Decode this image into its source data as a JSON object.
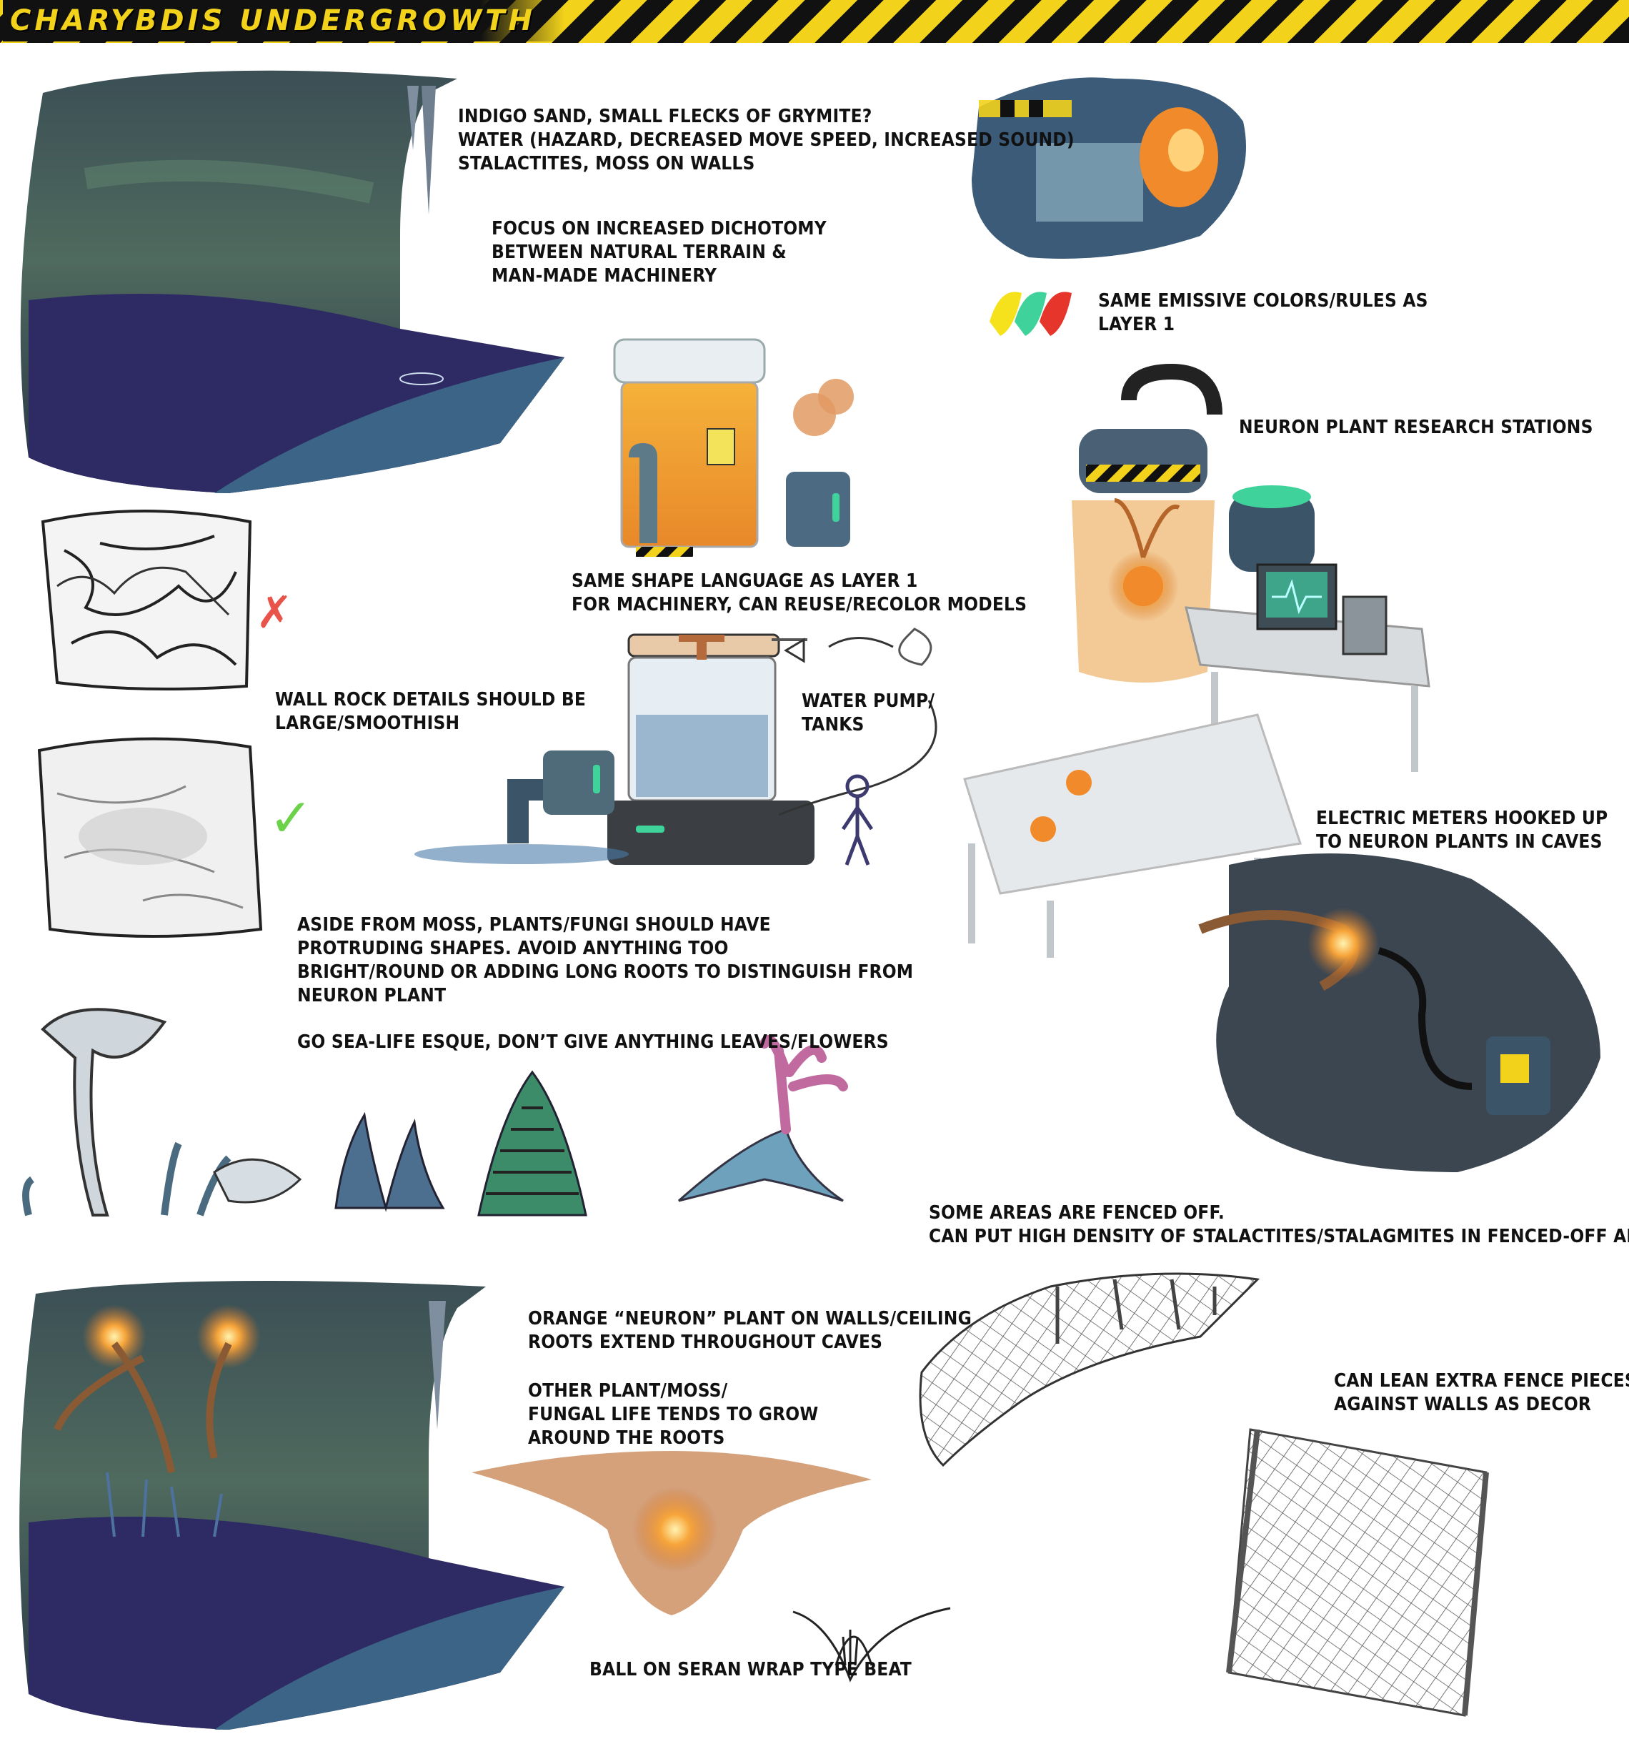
{
  "header": {
    "title": "CHARYBDIS UNDERGROWTH"
  },
  "notes": {
    "cave_materials": "INDIGO SAND, SMALL FLECKS OF GRYMITE?\nWATER (HAZARD, DECREASED MOVE SPEED, INCREASED SOUND)\nSTALACTITES, MOSS ON WALLS",
    "focus": "FOCUS ON INCREASED DICHOTOMY\nBETWEEN NATURAL TERRAIN &\nMAN-MADE MACHINERY",
    "emissive": "SAME EMISSIVE COLORS/RULES AS\nLAYER 1",
    "research_stations": "NEURON PLANT RESEARCH STATIONS",
    "shape_language": "SAME SHAPE LANGUAGE AS LAYER 1\nFOR MACHINERY, CAN REUSE/RECOLOR MODELS",
    "wall_rock": "WALL ROCK DETAILS SHOULD BE\nLARGE/SMOOTHISH",
    "water_pump": "WATER PUMP/\nTANKS",
    "electric_meters": "ELECTRIC METERS HOOKED UP\nTO NEURON PLANTS IN CAVES",
    "plants": "ASIDE FROM MOSS, PLANTS/FUNGI SHOULD HAVE\nPROTRUDING SHAPES. AVOID ANYTHING TOO\nBRIGHT/ROUND OR ADDING LONG ROOTS TO DISTINGUISH FROM\nNEURON PLANT",
    "sea_life": "GO SEA-LIFE ESQUE, DON’T GIVE ANYTHING LEAVES/FLOWERS",
    "fenced": "SOME AREAS ARE FENCED OFF.\nCAN PUT HIGH DENSITY OF STALACTITES/STALAGMITES IN FENCED-OFF AREAS",
    "neuron_plant": "ORANGE “NEURON” PLANT ON WALLS/CEILING\nROOTS EXTEND THROUGHOUT CAVES",
    "other_life": "OTHER PLANT/MOSS/\nFUNGAL LIFE TENDS TO GROW\nAROUND THE ROOTS",
    "fence_lean": "CAN LEAN EXTRA FENCE PIECES UP\nAGAINST WALLS AS DECOR",
    "seran_wrap": "BALL ON SERAN WRAP TYPE BEAT"
  },
  "marks": {
    "reject": "✗",
    "approve": "✓"
  },
  "colors": {
    "hazard_yellow": "#f2d21b",
    "emissive_yellow": "#f5e21c",
    "emissive_green": "#3fd39b",
    "emissive_red": "#e6352a",
    "neuron_orange": "#f08a2a",
    "cave_blue": "#3d6a8a",
    "indigo_sand": "#2e2a63"
  }
}
